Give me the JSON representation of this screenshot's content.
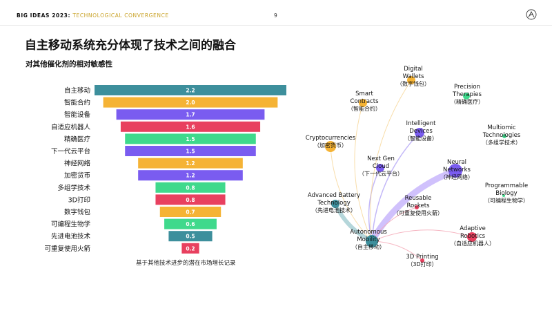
{
  "header": {
    "brand": "BIG IDEAS 2023:",
    "section": "TECHNOLOGICAL CONVERGENCE",
    "page": "9"
  },
  "title": "自主移动系统充分体现了技术之间的融合",
  "subtitle": "对其他催化剂的相对敏感性",
  "caption": "基于其他技术进步的潜在市场增长记录",
  "chart_data": [
    {
      "type": "bar",
      "orientation": "horizontal-centered",
      "categories": [
        "自主移动",
        "智能合约",
        "智能设备",
        "自适应机器人",
        "精确医疗",
        "下一代云平台",
        "神经网络",
        "加密货币",
        "多组学技术",
        "3D打印",
        "数字钱包",
        "可编程生物学",
        "先进电池技术",
        "可重复使用火箭"
      ],
      "values": [
        2.2,
        2.0,
        1.7,
        1.6,
        1.5,
        1.5,
        1.2,
        1.2,
        0.8,
        0.8,
        0.7,
        0.6,
        0.5,
        0.2
      ],
      "value_labels": [
        "2.2",
        "2.0",
        "1.7",
        "1.6",
        "1.5",
        "1.5",
        "1.2",
        "1.2",
        "0.8",
        "0.8",
        "0.7",
        "0.6",
        "0.5",
        "0.2"
      ],
      "colors": [
        "#3d8f9c",
        "#f5b335",
        "#7a5cf0",
        "#e8405f",
        "#3fd98c",
        "#7a5cf0",
        "#f5b335",
        "#7a5cf0",
        "#3fd98c",
        "#e8405f",
        "#f5b335",
        "#3fd98c",
        "#3d8f9c",
        "#e8405f"
      ]
    },
    {
      "type": "network",
      "nodes": [
        {
          "id": "wallets",
          "label": [
            "Digital",
            "Wallets"
          ],
          "label_cn": "（数字钱包）",
          "color": "#f5b335",
          "size": 6
        },
        {
          "id": "precision",
          "label": [
            "Precision",
            "Therapies"
          ],
          "label_cn": "（精确医疗）",
          "color": "#3fd98c",
          "size": 5
        },
        {
          "id": "smart",
          "label": [
            "Smart",
            "Contracts"
          ],
          "label_cn": "（智能合约）",
          "color": "#f5b335",
          "size": 6
        },
        {
          "id": "devices",
          "label": [
            "Intelligent",
            "Devices"
          ],
          "label_cn": "（智能设备）",
          "color": "#7a5cf0",
          "size": 7
        },
        {
          "id": "multiomic",
          "label": [
            "Multiomic",
            "Technologies"
          ],
          "label_cn": "（多组学技术）",
          "color": "#3fd98c",
          "size": 3
        },
        {
          "id": "crypto",
          "label": [
            "Cryptocurrencies"
          ],
          "label_cn": "（加密货币）",
          "color": "#f5b335",
          "size": 8
        },
        {
          "id": "cloud",
          "label": [
            "Next Gen",
            "Cloud"
          ],
          "label_cn": "（下一代云平台）",
          "color": "#7a5cf0",
          "size": 6
        },
        {
          "id": "neural",
          "label": [
            "Neural",
            "Networks"
          ],
          "label_cn": "（神经网络）",
          "color": "#7a5cf0",
          "size": 10
        },
        {
          "id": "progbio",
          "label": [
            "Programmable",
            "Biology"
          ],
          "label_cn": "（可编程生物学）",
          "color": "#3fd98c",
          "size": 2
        },
        {
          "id": "battery",
          "label": [
            "Advanced Battery",
            "Technology"
          ],
          "label_cn": "（先进电池技术）",
          "color": "#3d8f9c",
          "size": 6
        },
        {
          "id": "rockets",
          "label": [
            "Reusable",
            "Rockets"
          ],
          "label_cn": "（可重复使用火箭）",
          "color": "#e8405f",
          "size": 3
        },
        {
          "id": "robotics",
          "label": [
            "Adaptive",
            "Robotics"
          ],
          "label_cn": "（自适应机器人）",
          "color": "#e8405f",
          "size": 7
        },
        {
          "id": "mobility",
          "label": [
            "Autonomous",
            "Mobility"
          ],
          "label_cn": "（自主移动）",
          "color": "#3d8f9c",
          "size": 9
        },
        {
          "id": "printing",
          "label": [
            "3D Printing"
          ],
          "label_cn": "（3D打印）",
          "color": "#e8405f",
          "size": 3
        }
      ],
      "edges": [
        {
          "from": "mobility",
          "to": "neural",
          "color": "#c8b6fb",
          "weight": 9
        },
        {
          "from": "mobility",
          "to": "battery",
          "color": "#a8cfd4",
          "weight": 6
        },
        {
          "from": "mobility",
          "to": "devices",
          "color": "#b9abf7",
          "weight": 1.5
        },
        {
          "from": "mobility",
          "to": "cloud",
          "color": "#b9abf7",
          "weight": 1.5
        },
        {
          "from": "mobility",
          "to": "smart",
          "color": "#f7d79a",
          "weight": 1
        },
        {
          "from": "mobility",
          "to": "wallets",
          "color": "#f7d79a",
          "weight": 1
        },
        {
          "from": "mobility",
          "to": "crypto",
          "color": "#f7d79a",
          "weight": 1
        },
        {
          "from": "mobility",
          "to": "rockets",
          "color": "#f4a9b7",
          "weight": 1
        },
        {
          "from": "mobility",
          "to": "robotics",
          "color": "#f4a9b7",
          "weight": 1
        },
        {
          "from": "mobility",
          "to": "printing",
          "color": "#f4a9b7",
          "weight": 1
        }
      ]
    }
  ]
}
